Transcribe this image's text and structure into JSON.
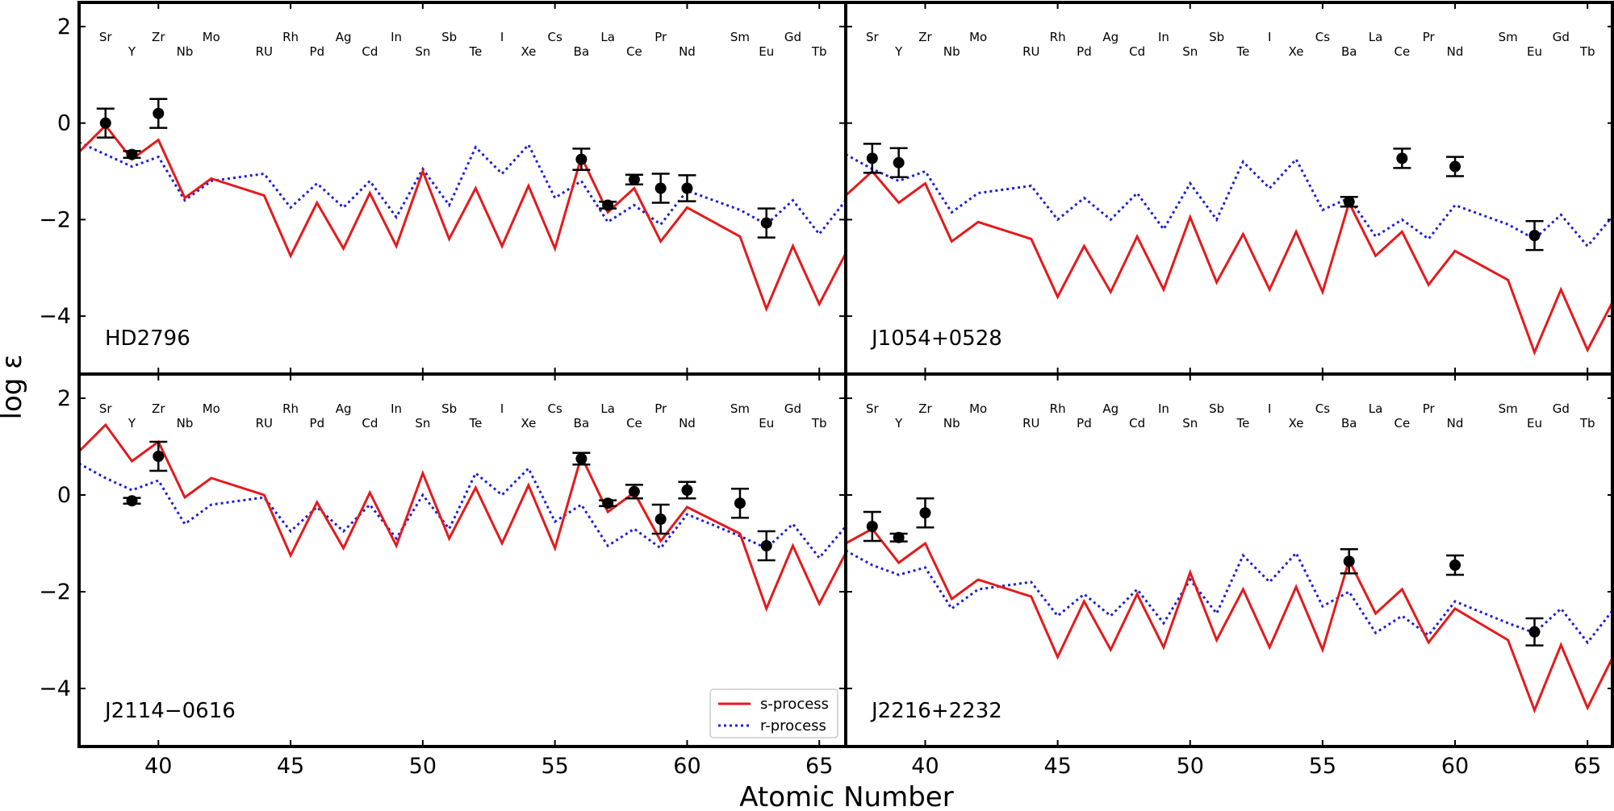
{
  "chart_data": {
    "type": "line",
    "xlabel": "Atomic Number",
    "ylabel": "log ε",
    "xlim": [
      37,
      66
    ],
    "ylim": [
      -5.2,
      2.5
    ],
    "xticks": [
      40,
      45,
      50,
      55,
      60,
      65
    ],
    "yticks": [
      2,
      0,
      -2,
      -4
    ],
    "xtick_labels": [
      "40",
      "45",
      "50",
      "55",
      "60",
      "65"
    ],
    "ytick_labels": [
      "2",
      "0",
      "−2",
      "−4"
    ],
    "elements": [
      {
        "symbol": "Sr",
        "z": 38,
        "row": "upper"
      },
      {
        "symbol": "Y",
        "z": 39,
        "row": "lower"
      },
      {
        "symbol": "Zr",
        "z": 40,
        "row": "upper"
      },
      {
        "symbol": "Nb",
        "z": 41,
        "row": "lower"
      },
      {
        "symbol": "Mo",
        "z": 42,
        "row": "upper"
      },
      {
        "symbol": "RU",
        "z": 44,
        "row": "lower"
      },
      {
        "symbol": "Rh",
        "z": 45,
        "row": "upper"
      },
      {
        "symbol": "Pd",
        "z": 46,
        "row": "lower"
      },
      {
        "symbol": "Ag",
        "z": 47,
        "row": "upper"
      },
      {
        "symbol": "Cd",
        "z": 48,
        "row": "lower"
      },
      {
        "symbol": "In",
        "z": 49,
        "row": "upper"
      },
      {
        "symbol": "Sn",
        "z": 50,
        "row": "lower"
      },
      {
        "symbol": "Sb",
        "z": 51,
        "row": "upper"
      },
      {
        "symbol": "Te",
        "z": 52,
        "row": "lower"
      },
      {
        "symbol": "I",
        "z": 53,
        "row": "upper"
      },
      {
        "symbol": "Xe",
        "z": 54,
        "row": "lower"
      },
      {
        "symbol": "Cs",
        "z": 55,
        "row": "upper"
      },
      {
        "symbol": "Ba",
        "z": 56,
        "row": "lower"
      },
      {
        "symbol": "La",
        "z": 57,
        "row": "upper"
      },
      {
        "symbol": "Ce",
        "z": 58,
        "row": "lower"
      },
      {
        "symbol": "Pr",
        "z": 59,
        "row": "upper"
      },
      {
        "symbol": "Nd",
        "z": 60,
        "row": "lower"
      },
      {
        "symbol": "Sm",
        "z": 62,
        "row": "upper"
      },
      {
        "symbol": "Eu",
        "z": 63,
        "row": "lower"
      },
      {
        "symbol": "Gd",
        "z": 64,
        "row": "upper"
      },
      {
        "symbol": "Tb",
        "z": 65,
        "row": "lower"
      }
    ],
    "legend": {
      "location": "lower-right of bottom-left panel",
      "entries": [
        {
          "label": "s-process",
          "color": "#e41a1c",
          "style": "solid"
        },
        {
          "label": "r-process",
          "color": "#1f1fd6",
          "style": "dotted"
        }
      ]
    },
    "panels": [
      {
        "name": "HD2796",
        "s_process": {
          "x": [
            37,
            38,
            39,
            40,
            41,
            42,
            44,
            45,
            46,
            47,
            48,
            49,
            50,
            51,
            52,
            53,
            54,
            55,
            56,
            57,
            58,
            59,
            60,
            62,
            63,
            64,
            65,
            66
          ],
          "y": [
            -0.6,
            -0.05,
            -0.75,
            -0.35,
            -1.55,
            -1.15,
            -1.5,
            -2.75,
            -1.65,
            -2.6,
            -1.45,
            -2.55,
            -1.0,
            -2.4,
            -1.35,
            -2.55,
            -1.3,
            -2.6,
            -0.7,
            -1.85,
            -1.35,
            -2.45,
            -1.75,
            -2.35,
            -3.85,
            -2.55,
            -3.75,
            -2.7
          ]
        },
        "r_process": {
          "x": [
            37,
            38,
            39,
            40,
            41,
            42,
            44,
            45,
            46,
            47,
            48,
            49,
            50,
            51,
            52,
            53,
            54,
            55,
            56,
            57,
            58,
            59,
            60,
            62,
            63,
            64,
            65,
            66
          ],
          "y": [
            -0.4,
            -0.65,
            -0.9,
            -0.7,
            -1.6,
            -1.2,
            -1.05,
            -1.75,
            -1.25,
            -1.75,
            -1.2,
            -1.95,
            -0.95,
            -1.7,
            -0.5,
            -1.05,
            -0.45,
            -1.55,
            -1.2,
            -2.05,
            -1.7,
            -2.1,
            -1.4,
            -1.8,
            -2.1,
            -1.6,
            -2.3,
            -1.6
          ]
        },
        "observed": [
          {
            "z": 38,
            "y": 0.0,
            "err": 0.3
          },
          {
            "z": 39,
            "y": -0.65,
            "err": 0.07
          },
          {
            "z": 40,
            "y": 0.2,
            "err": 0.3
          },
          {
            "z": 56,
            "y": -0.75,
            "err": 0.22
          },
          {
            "z": 57,
            "y": -1.7,
            "err": 0.07
          },
          {
            "z": 58,
            "y": -1.17,
            "err": 0.1
          },
          {
            "z": 59,
            "y": -1.35,
            "err": 0.3
          },
          {
            "z": 60,
            "y": -1.35,
            "err": 0.27
          },
          {
            "z": 63,
            "y": -2.07,
            "err": 0.3
          }
        ]
      },
      {
        "name": "J1054+0528",
        "s_process": {
          "x": [
            37,
            38,
            39,
            40,
            41,
            42,
            44,
            45,
            46,
            47,
            48,
            49,
            50,
            51,
            52,
            53,
            54,
            55,
            56,
            57,
            58,
            59,
            60,
            62,
            63,
            64,
            65,
            66
          ],
          "y": [
            -1.5,
            -1.0,
            -1.65,
            -1.25,
            -2.45,
            -2.05,
            -2.4,
            -3.6,
            -2.55,
            -3.5,
            -2.35,
            -3.45,
            -1.95,
            -3.3,
            -2.3,
            -3.45,
            -2.25,
            -3.5,
            -1.65,
            -2.75,
            -2.25,
            -3.35,
            -2.65,
            -3.25,
            -4.75,
            -3.45,
            -4.7,
            -3.65
          ]
        },
        "r_process": {
          "x": [
            37,
            38,
            39,
            40,
            41,
            42,
            44,
            45,
            46,
            47,
            48,
            49,
            50,
            51,
            52,
            53,
            54,
            55,
            56,
            57,
            58,
            59,
            60,
            62,
            63,
            64,
            65,
            66
          ],
          "y": [
            -0.65,
            -0.95,
            -1.2,
            -1.0,
            -1.85,
            -1.45,
            -1.3,
            -2.0,
            -1.55,
            -2.0,
            -1.45,
            -2.2,
            -1.25,
            -2.0,
            -0.8,
            -1.35,
            -0.75,
            -1.8,
            -1.55,
            -2.35,
            -2.0,
            -2.4,
            -1.7,
            -2.1,
            -2.4,
            -1.9,
            -2.55,
            -1.9
          ]
        },
        "observed": [
          {
            "z": 38,
            "y": -0.73,
            "err": 0.3
          },
          {
            "z": 39,
            "y": -0.82,
            "err": 0.3
          },
          {
            "z": 56,
            "y": -1.63,
            "err": 0.1
          },
          {
            "z": 58,
            "y": -0.73,
            "err": 0.2
          },
          {
            "z": 60,
            "y": -0.9,
            "err": 0.2
          },
          {
            "z": 63,
            "y": -2.33,
            "err": 0.3
          }
        ]
      },
      {
        "name": "J2114−0616",
        "s_process": {
          "x": [
            37,
            38,
            39,
            40,
            41,
            42,
            44,
            45,
            46,
            47,
            48,
            49,
            50,
            51,
            52,
            53,
            54,
            55,
            56,
            57,
            58,
            59,
            60,
            62,
            63,
            64,
            65,
            66
          ],
          "y": [
            0.9,
            1.45,
            0.7,
            1.1,
            -0.05,
            0.35,
            0.0,
            -1.25,
            -0.15,
            -1.1,
            0.05,
            -1.05,
            0.45,
            -0.9,
            0.15,
            -1.0,
            0.2,
            -1.1,
            0.8,
            -0.35,
            0.05,
            -0.95,
            -0.25,
            -0.8,
            -2.35,
            -1.05,
            -2.25,
            -1.2
          ]
        },
        "r_process": {
          "x": [
            37,
            38,
            39,
            40,
            41,
            42,
            44,
            45,
            46,
            47,
            48,
            49,
            50,
            51,
            52,
            53,
            54,
            55,
            56,
            57,
            58,
            59,
            60,
            62,
            63,
            64,
            65,
            66
          ],
          "y": [
            0.65,
            0.35,
            0.1,
            0.3,
            -0.6,
            -0.2,
            -0.05,
            -0.75,
            -0.25,
            -0.75,
            -0.2,
            -0.9,
            0.0,
            -0.7,
            0.45,
            0.0,
            0.55,
            -0.55,
            -0.2,
            -1.05,
            -0.7,
            -1.1,
            -0.4,
            -0.85,
            -1.1,
            -0.6,
            -1.3,
            -0.65
          ]
        },
        "observed": [
          {
            "z": 39,
            "y": -0.12,
            "err": 0.06
          },
          {
            "z": 40,
            "y": 0.8,
            "err": 0.3
          },
          {
            "z": 56,
            "y": 0.75,
            "err": 0.12
          },
          {
            "z": 57,
            "y": -0.17,
            "err": 0.06
          },
          {
            "z": 58,
            "y": 0.07,
            "err": 0.14
          },
          {
            "z": 59,
            "y": -0.5,
            "err": 0.3
          },
          {
            "z": 60,
            "y": 0.1,
            "err": 0.17
          },
          {
            "z": 62,
            "y": -0.17,
            "err": 0.3
          },
          {
            "z": 63,
            "y": -1.05,
            "err": 0.3
          }
        ]
      },
      {
        "name": "J2216+2232",
        "s_process": {
          "x": [
            37,
            38,
            39,
            40,
            41,
            42,
            44,
            45,
            46,
            47,
            48,
            49,
            50,
            51,
            52,
            53,
            54,
            55,
            56,
            57,
            58,
            59,
            60,
            62,
            63,
            64,
            65,
            66
          ],
          "y": [
            -1.0,
            -0.7,
            -1.4,
            -1.0,
            -2.15,
            -1.75,
            -2.1,
            -3.35,
            -2.2,
            -3.2,
            -2.05,
            -3.15,
            -1.6,
            -3.0,
            -1.95,
            -3.15,
            -1.9,
            -3.2,
            -1.35,
            -2.45,
            -1.95,
            -3.05,
            -2.35,
            -3.0,
            -4.45,
            -3.1,
            -4.4,
            -3.3
          ]
        },
        "r_process": {
          "x": [
            37,
            38,
            39,
            40,
            41,
            42,
            44,
            45,
            46,
            47,
            48,
            49,
            50,
            51,
            52,
            53,
            54,
            55,
            56,
            57,
            58,
            59,
            60,
            62,
            63,
            64,
            65,
            66
          ],
          "y": [
            -1.15,
            -1.45,
            -1.65,
            -1.5,
            -2.35,
            -1.95,
            -1.8,
            -2.5,
            -2.05,
            -2.5,
            -1.95,
            -2.65,
            -1.75,
            -2.45,
            -1.25,
            -1.8,
            -1.2,
            -2.3,
            -2.0,
            -2.85,
            -2.5,
            -2.9,
            -2.2,
            -2.65,
            -2.85,
            -2.35,
            -3.05,
            -2.35
          ]
        },
        "observed": [
          {
            "z": 38,
            "y": -0.65,
            "err": 0.3
          },
          {
            "z": 39,
            "y": -0.88,
            "err": 0.08
          },
          {
            "z": 40,
            "y": -0.37,
            "err": 0.3
          },
          {
            "z": 56,
            "y": -1.37,
            "err": 0.25
          },
          {
            "z": 60,
            "y": -1.45,
            "err": 0.2
          },
          {
            "z": 63,
            "y": -2.83,
            "err": 0.28
          }
        ]
      }
    ]
  }
}
